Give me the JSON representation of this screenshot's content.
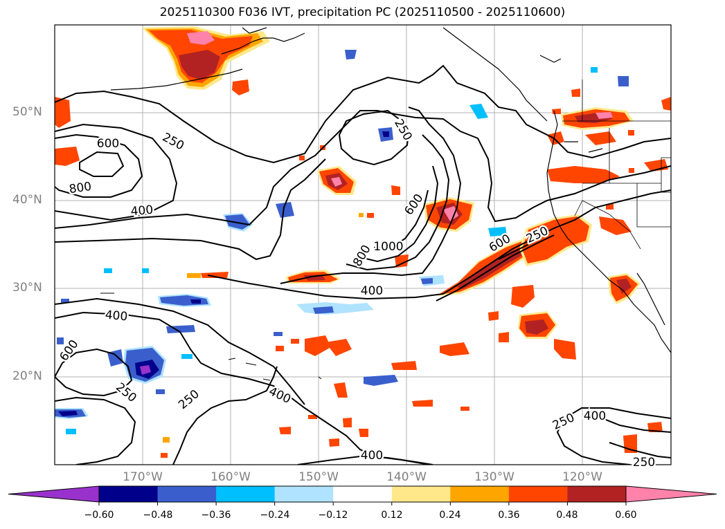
{
  "title": "2025110300 F036 IVT, precipitation PC (2025110500 - 2025110600)",
  "lat_labels": [
    "50°N",
    "40°N",
    "30°N",
    "20°N"
  ],
  "lon_labels": [
    "170°W",
    "160°W",
    "150°W",
    "140°W",
    "130°W",
    "120°W"
  ],
  "ivt_contour_labels": [
    "250",
    "600",
    "800",
    "400",
    "250",
    "600",
    "800",
    "1000",
    "400",
    "600",
    "250",
    "400",
    "600",
    "250",
    "400",
    "250",
    "400",
    "250",
    "400",
    "250"
  ],
  "colorbar": {
    "ticks": [
      "−0.60",
      "−0.48",
      "−0.36",
      "−0.24",
      "−0.12",
      "0.12",
      "0.24",
      "0.36",
      "0.48",
      "0.60"
    ],
    "colors": [
      "#9932cc",
      "#00008b",
      "#3a5fcd",
      "#00bfff",
      "#afe3ff",
      "#ffffff",
      "#ffe88a",
      "#ffa500",
      "#ff4500",
      "#b22222",
      "#ff82ab"
    ]
  },
  "colors": {
    "grid": "#b0b0b0",
    "contour": "#000000",
    "label_text": "#808080"
  }
}
